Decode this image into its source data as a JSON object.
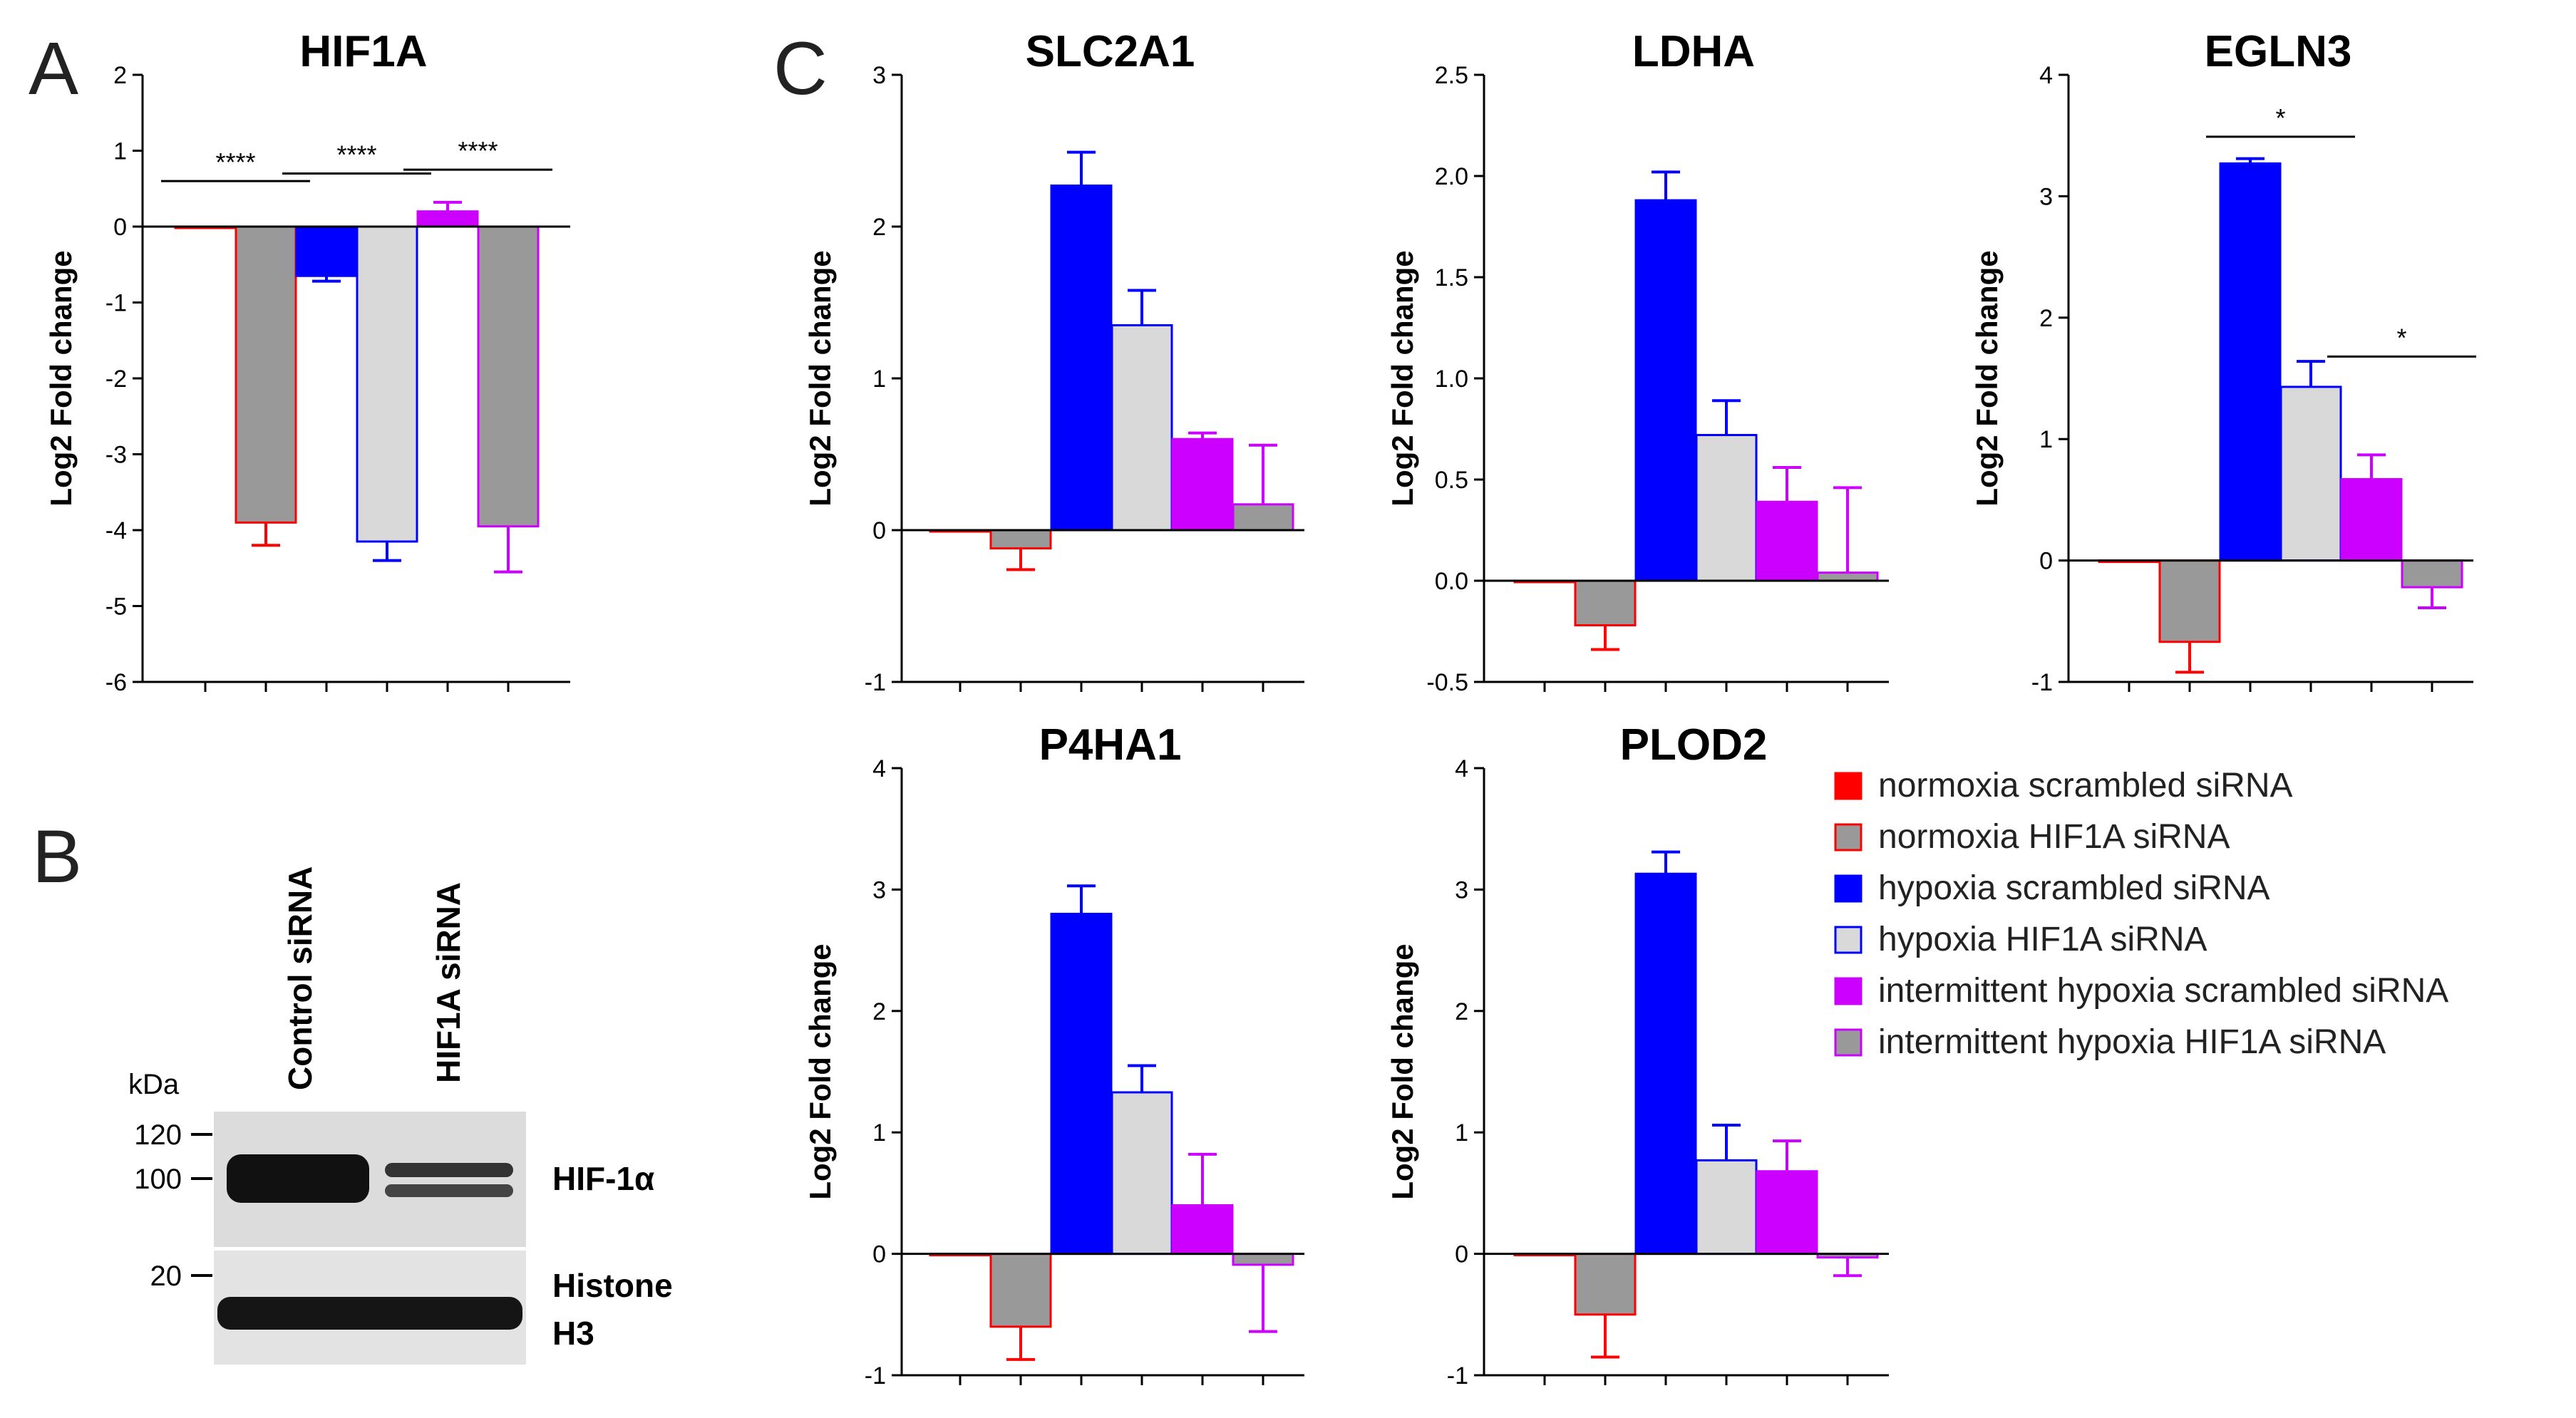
{
  "panel_letters": {
    "a": "A",
    "b": "B",
    "c": "C"
  },
  "series": [
    {
      "name": "normoxia scrambled siRNA",
      "fill": "#ff0000",
      "stroke": "#ff0000"
    },
    {
      "name": "normoxia HIF1A siRNA",
      "fill": "#999999",
      "stroke": "#ff0000"
    },
    {
      "name": "hypoxia scrambled siRNA",
      "fill": "#0000ff",
      "stroke": "#0000ff"
    },
    {
      "name": "hypoxia HIF1A siRNA",
      "fill": "#d9d9d9",
      "stroke": "#0000ff"
    },
    {
      "name": "intermittent hypoxia scrambled siRNA",
      "fill": "#cc00ff",
      "stroke": "#cc00ff"
    },
    {
      "name": "intermittent hypoxia HIF1A siRNA",
      "fill": "#999999",
      "stroke": "#cc00ff"
    }
  ],
  "chart_data": [
    {
      "type": "bar",
      "title": "HIF1A",
      "ylabel": "Log2 Fold change",
      "ylim": [
        -6,
        2
      ],
      "yticks": [
        -6,
        -5,
        -4,
        -3,
        -2,
        -1,
        0,
        1,
        2
      ],
      "ytick_labels": [
        "-6",
        "-5",
        "-4",
        "-3",
        "-2",
        "-1",
        "0",
        "1",
        "2"
      ],
      "categories": [
        "normoxia scrambled siRNA",
        "normoxia HIF1A siRNA",
        "hypoxia scrambled siRNA",
        "hypoxia HIF1A siRNA",
        "intermittent hypoxia scrambled siRNA",
        "intermittent hypoxia HIF1A siRNA"
      ],
      "values": [
        0,
        -3.9,
        -0.65,
        -4.15,
        0.2,
        -3.95
      ],
      "errors": [
        0,
        0.3,
        0.07,
        0.25,
        0.12,
        0.6
      ],
      "significance": [
        {
          "from": 0,
          "to": 1,
          "y": 0.6,
          "label": "****"
        },
        {
          "from": 2,
          "to": 3,
          "y": 0.7,
          "label": "****"
        },
        {
          "from": 4,
          "to": 5,
          "y": 0.75,
          "label": "****"
        }
      ]
    },
    {
      "type": "bar",
      "title": "SLC2A1",
      "ylabel": "Log2 Fold change",
      "ylim": [
        -1,
        3
      ],
      "yticks": [
        -1,
        0,
        1,
        2,
        3
      ],
      "ytick_labels": [
        "-1",
        "0",
        "1",
        "2",
        "3"
      ],
      "categories": [
        "normoxia scrambled siRNA",
        "normoxia HIF1A siRNA",
        "hypoxia scrambled siRNA",
        "hypoxia HIF1A siRNA",
        "intermittent hypoxia scrambled siRNA",
        "intermittent hypoxia HIF1A siRNA"
      ],
      "values": [
        0,
        -0.12,
        2.27,
        1.35,
        0.6,
        0.17
      ],
      "errors": [
        0,
        0.14,
        0.22,
        0.23,
        0.04,
        0.39
      ],
      "significance": []
    },
    {
      "type": "bar",
      "title": "LDHA",
      "ylabel": "Log2 Fold change",
      "ylim": [
        -0.5,
        2.5
      ],
      "yticks": [
        -0.5,
        0,
        0.5,
        1,
        1.5,
        2,
        2.5
      ],
      "ytick_labels": [
        "-0.5",
        "0.0",
        "0.5",
        "1.0",
        "1.5",
        "2.0",
        "2.5"
      ],
      "categories": [
        "normoxia scrambled siRNA",
        "normoxia HIF1A siRNA",
        "hypoxia scrambled siRNA",
        "hypoxia HIF1A siRNA",
        "intermittent hypoxia scrambled siRNA",
        "intermittent hypoxia HIF1A siRNA"
      ],
      "values": [
        0,
        -0.22,
        1.88,
        0.72,
        0.39,
        0.04
      ],
      "errors": [
        0,
        0.12,
        0.14,
        0.17,
        0.17,
        0.42
      ],
      "significance": []
    },
    {
      "type": "bar",
      "title": "EGLN3",
      "ylabel": "Log2 Fold change",
      "ylim": [
        -1,
        4
      ],
      "yticks": [
        -1,
        0,
        1,
        2,
        3,
        4
      ],
      "ytick_labels": [
        "-1",
        "0",
        "1",
        "2",
        "3",
        "4"
      ],
      "categories": [
        "normoxia scrambled siRNA",
        "normoxia HIF1A siRNA",
        "hypoxia scrambled siRNA",
        "hypoxia HIF1A siRNA",
        "intermittent hypoxia scrambled siRNA",
        "intermittent hypoxia HIF1A siRNA"
      ],
      "values": [
        0,
        -0.67,
        3.27,
        1.43,
        0.67,
        -0.22
      ],
      "errors": [
        0,
        0.25,
        0.04,
        0.21,
        0.2,
        0.17
      ],
      "significance": [
        {
          "from": 2,
          "to": 3,
          "y": 3.49,
          "label": "*"
        },
        {
          "from": 4,
          "to": 5,
          "y": 1.68,
          "label": "*"
        }
      ]
    },
    {
      "type": "bar",
      "title": "P4HA1",
      "ylabel": "Log2 Fold change",
      "ylim": [
        -1,
        4
      ],
      "yticks": [
        -1,
        0,
        1,
        2,
        3,
        4
      ],
      "ytick_labels": [
        "-1",
        "0",
        "1",
        "2",
        "3",
        "4"
      ],
      "categories": [
        "normoxia scrambled siRNA",
        "normoxia HIF1A siRNA",
        "hypoxia scrambled siRNA",
        "hypoxia HIF1A siRNA",
        "intermittent hypoxia scrambled siRNA",
        "intermittent hypoxia HIF1A siRNA"
      ],
      "values": [
        0,
        -0.6,
        2.8,
        1.33,
        0.4,
        -0.09
      ],
      "errors": [
        0,
        0.27,
        0.23,
        0.22,
        0.42,
        0.55
      ],
      "significance": []
    },
    {
      "type": "bar",
      "title": "PLOD2",
      "ylabel": "Log2 Fold change",
      "ylim": [
        -1,
        4
      ],
      "yticks": [
        -1,
        0,
        1,
        2,
        3,
        4
      ],
      "ytick_labels": [
        "-1",
        "0",
        "1",
        "2",
        "3",
        "4"
      ],
      "categories": [
        "normoxia scrambled siRNA",
        "normoxia HIF1A siRNA",
        "hypoxia scrambled siRNA",
        "hypoxia HIF1A siRNA",
        "intermittent hypoxia scrambled siRNA",
        "intermittent hypoxia HIF1A siRNA"
      ],
      "values": [
        0,
        -0.5,
        3.13,
        0.77,
        0.68,
        -0.03
      ],
      "errors": [
        0,
        0.35,
        0.18,
        0.29,
        0.25,
        0.15
      ],
      "significance": []
    }
  ],
  "western_blot": {
    "unit_label": "kDa",
    "lane_labels": [
      "Control siRNA",
      "HIF1A siRNA"
    ],
    "markers": [
      {
        "value": "120",
        "label_y": 1592
      },
      {
        "value": "100",
        "label_y": 1654
      },
      {
        "value": "20",
        "label_y": 1790
      }
    ],
    "targets": [
      {
        "label_line1": "HIF-1α",
        "label_line2": ""
      },
      {
        "label_line1": "Histone",
        "label_line2": "H3"
      }
    ]
  }
}
